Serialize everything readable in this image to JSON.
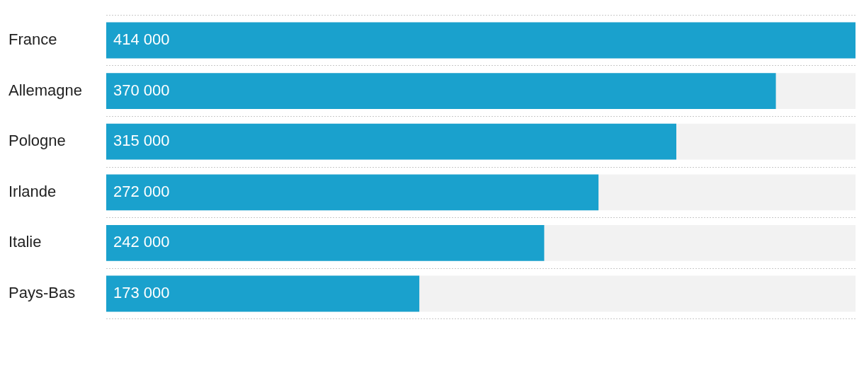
{
  "chart_data": {
    "type": "bar",
    "orientation": "horizontal",
    "categories": [
      "France",
      "Allemagne",
      "Pologne",
      "Irlande",
      "Italie",
      "Pays-Bas"
    ],
    "values": [
      414000,
      370000,
      315000,
      272000,
      242000,
      173000
    ],
    "value_labels": [
      "414 000",
      "370 000",
      "315 000",
      "272 000",
      "242 000",
      "173 000"
    ],
    "color": "#1aa1cd",
    "xlim": [
      0,
      414000
    ],
    "grid": "y",
    "legend": false
  }
}
